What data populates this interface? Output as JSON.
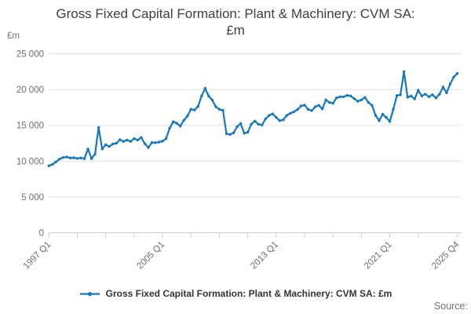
{
  "title_lines": [
    "Gross Fixed Capital Formation: Plant & Machinery: CVM SA:",
    "£m"
  ],
  "y_axis": {
    "unit_label": "£m",
    "tick_labels": [
      "25 000",
      "20 000",
      "15 000",
      "10 000",
      "5 000",
      "0"
    ],
    "tick_values": [
      25000,
      20000,
      15000,
      10000,
      5000,
      0
    ]
  },
  "x_axis": {
    "tick_labels": [
      {
        "label": "1997 Q1",
        "index": 0
      },
      {
        "label": "2005 Q1",
        "index": 32
      },
      {
        "label": "2013 Q1",
        "index": 64
      },
      {
        "label": "2021 Q1",
        "index": 96
      },
      {
        "label": "2025 Q4",
        "index": 115
      }
    ]
  },
  "legend": {
    "label": "Gross Fixed Capital Formation: Plant & Machinery: CVM SA: £m"
  },
  "source_label": "Source:",
  "colors": {
    "line": "#1378be",
    "grid": "#e2e2e2",
    "axis": "#c4cede",
    "muted_text": "#6e6e6e",
    "title_text": "#3f3f3f",
    "legend_text": "#333333"
  },
  "chart_data": {
    "type": "line",
    "title": "Gross Fixed Capital Formation: Plant & Machinery: CVM SA: £m",
    "x_start": "1997 Q1",
    "x_end": "2025 Q4",
    "frequency": "quarterly",
    "ylim": [
      0,
      25000
    ],
    "grid": "horizontal",
    "legend_position": "bottom",
    "marker": "circle",
    "series": [
      {
        "name": "Gross Fixed Capital Formation: Plant & Machinery: CVM SA: £m",
        "color": "#1378be",
        "values": [
          9350,
          9550,
          9900,
          10300,
          10500,
          10580,
          10450,
          10470,
          10380,
          10450,
          10350,
          11700,
          10350,
          11000,
          14700,
          11700,
          12300,
          12050,
          12400,
          12500,
          13000,
          12750,
          12950,
          12750,
          13150,
          12950,
          13300,
          12450,
          11900,
          12600,
          12580,
          12660,
          12800,
          13150,
          14600,
          15500,
          15300,
          14900,
          15700,
          16300,
          17250,
          17150,
          17650,
          19100,
          20180,
          19080,
          18530,
          17600,
          17250,
          17100,
          13840,
          13730,
          13950,
          14800,
          15250,
          13900,
          14030,
          15160,
          15590,
          15160,
          15040,
          15900,
          16390,
          16600,
          16130,
          15660,
          15770,
          16390,
          16690,
          16900,
          17200,
          17710,
          17830,
          17240,
          17060,
          17600,
          17800,
          17300,
          18550,
          18200,
          18080,
          18840,
          18990,
          18990,
          19200,
          19100,
          18730,
          18370,
          18550,
          18900,
          18200,
          17800,
          16380,
          15650,
          16560,
          16120,
          15540,
          17280,
          19170,
          19280,
          22500,
          18920,
          19100,
          18700,
          19900,
          19100,
          19360,
          18990,
          19280,
          18840,
          19350,
          20360,
          19530,
          20800,
          21740,
          22250
        ]
      }
    ]
  }
}
